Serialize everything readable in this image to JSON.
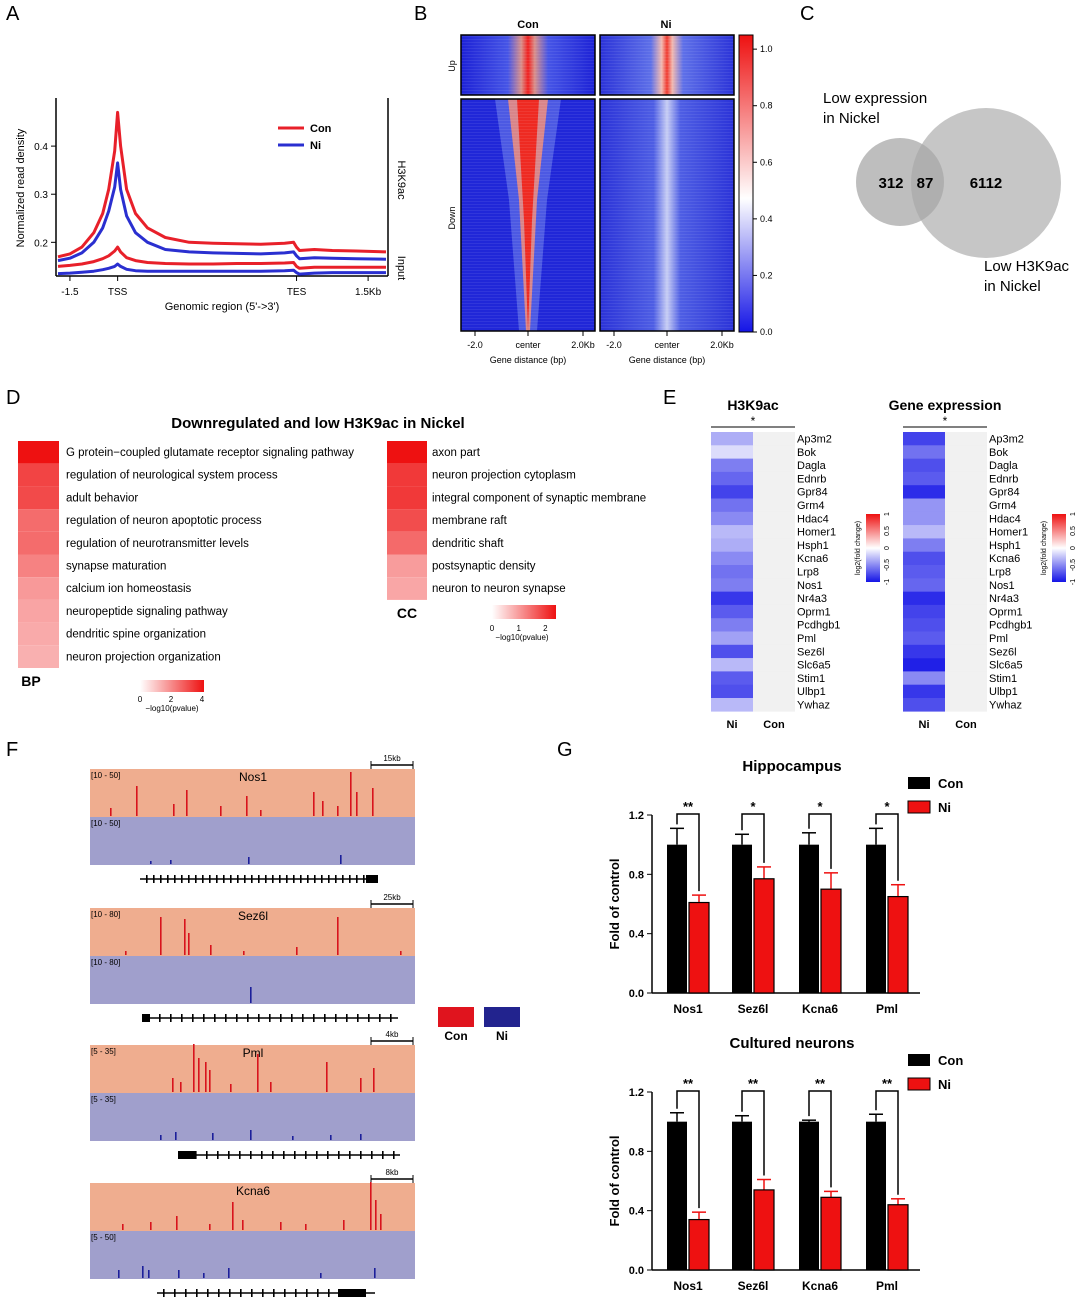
{
  "panel_letters": [
    "A",
    "B",
    "C",
    "D",
    "E",
    "F",
    "G"
  ],
  "colors": {
    "con": "#e8202a",
    "ni": "#2a2fd0",
    "con_block": "#e0141e",
    "ni_block": "#22238e",
    "bar_con": "#000000",
    "bar_ni": "#ee1111"
  },
  "chart_data": [
    {
      "id": "A",
      "type": "line",
      "ylabel": "Normalized read density",
      "xlabel": "Genomic region (5'->3')",
      "xticks": [
        "-1.5",
        "TSS",
        "TES",
        "1.5Kb"
      ],
      "yticks": [
        "0.2",
        "0.3",
        "0.4"
      ],
      "ylim": [
        0.13,
        0.5
      ],
      "right_labels": [
        "H3K9ac",
        "Input"
      ],
      "legend": [
        "Con",
        "Ni"
      ],
      "x": [
        0,
        0.2,
        0.4,
        0.6,
        0.75,
        0.85,
        0.95,
        1,
        1.05,
        1.15,
        1.3,
        1.5,
        1.8,
        2.2,
        2.6,
        3,
        3.4,
        3.8,
        3.95,
        4,
        4.05,
        4.3,
        4.6,
        5,
        5.5
      ],
      "series": [
        {
          "name": "Con",
          "signal": "H3K9ac",
          "values": [
            0.17,
            0.176,
            0.19,
            0.22,
            0.26,
            0.31,
            0.39,
            0.47,
            0.4,
            0.31,
            0.26,
            0.23,
            0.21,
            0.2,
            0.198,
            0.197,
            0.196,
            0.198,
            0.2,
            0.19,
            0.183,
            0.185,
            0.183,
            0.182,
            0.18
          ]
        },
        {
          "name": "Ni",
          "signal": "H3K9ac",
          "values": [
            0.162,
            0.167,
            0.178,
            0.2,
            0.23,
            0.265,
            0.315,
            0.365,
            0.31,
            0.255,
            0.22,
            0.2,
            0.185,
            0.18,
            0.178,
            0.177,
            0.176,
            0.178,
            0.18,
            0.172,
            0.166,
            0.168,
            0.167,
            0.166,
            0.165
          ]
        },
        {
          "name": "Con",
          "signal": "Input",
          "values": [
            0.15,
            0.152,
            0.155,
            0.16,
            0.166,
            0.172,
            0.182,
            0.19,
            0.18,
            0.168,
            0.162,
            0.158,
            0.156,
            0.155,
            0.155,
            0.156,
            0.156,
            0.157,
            0.158,
            0.15,
            0.146,
            0.148,
            0.148,
            0.148,
            0.148
          ]
        },
        {
          "name": "Ni",
          "signal": "Input",
          "values": [
            0.135,
            0.136,
            0.138,
            0.14,
            0.143,
            0.146,
            0.15,
            0.155,
            0.15,
            0.144,
            0.141,
            0.14,
            0.14,
            0.14,
            0.14,
            0.14,
            0.14,
            0.141,
            0.142,
            0.137,
            0.134,
            0.136,
            0.137,
            0.137,
            0.137
          ]
        }
      ]
    },
    {
      "id": "B",
      "type": "heatmap",
      "columns": [
        "Con",
        "Ni"
      ],
      "rows": [
        "Up",
        "Down"
      ],
      "xticks": [
        "-2.0",
        "center",
        "2.0Kb"
      ],
      "xlabel": "Gene distance (bp)",
      "colorbar_ticks": [
        "0.0",
        "0.2",
        "0.4",
        "0.6",
        "0.8",
        "1.0"
      ],
      "colorbar_range": [
        0,
        1.05
      ]
    },
    {
      "id": "C",
      "type": "venn",
      "sets": [
        {
          "label_line1": "Low expression",
          "label_line2": "in Nickel",
          "only": 312
        },
        {
          "label_line1": "Low H3K9ac",
          "label_line2": "in Nickel",
          "only": 6112
        }
      ],
      "overlap": 87
    },
    {
      "id": "D",
      "type": "heatmap",
      "title": "Downregulated and low H3K9ac in Nickel",
      "BP": {
        "label": "BP",
        "scale_ticks": [
          "0",
          "2",
          "4"
        ],
        "scale_label": "−log10(pvalue)",
        "terms": [
          "G protein−coupled glutamate receptor signaling pathway",
          "regulation of neurological system process",
          "adult behavior",
          "regulation of neuron apoptotic process",
          "regulation of neurotransmitter levels",
          "synapse maturation",
          "calcium ion homeostasis",
          "neuropeptide signaling pathway",
          "dendritic spine organization",
          "neuron projection organization"
        ],
        "values": [
          4.2,
          3.3,
          3.2,
          2.6,
          2.6,
          2.2,
          1.8,
          1.6,
          1.5,
          1.4
        ]
      },
      "CC": {
        "label": "CC",
        "scale_ticks": [
          "0",
          "1",
          "2"
        ],
        "scale_label": "−log10(pvalue)",
        "terms": [
          "axon part",
          "neuron projection cytoplasm",
          "integral component of synaptic membrane",
          "membrane raft",
          "dendritic shaft",
          "postsynaptic density",
          "neuron to neuron synapse"
        ],
        "values": [
          2.4,
          2.0,
          2.0,
          1.8,
          1.5,
          1.0,
          0.9
        ]
      }
    },
    {
      "id": "E",
      "type": "heatmap",
      "genes": [
        "Ap3m2",
        "Bok",
        "Dagla",
        "Ednrb",
        "Gpr84",
        "Grm4",
        "Hdac4",
        "Homer1",
        "Hsph1",
        "Kcna6",
        "Lrp8",
        "Nos1",
        "Nr4a3",
        "Oprm1",
        "Pcdhgb1",
        "Pml",
        "Sez6l",
        "Slc6a5",
        "Stim1",
        "Ulbp1",
        "Ywhaz"
      ],
      "columns": [
        "Ni",
        "Con"
      ],
      "significance": "*",
      "scale_ticks": [
        "-1",
        "-0.5",
        "0",
        "0.5",
        "1"
      ],
      "scale_label": "log2(fold change)",
      "panels": [
        {
          "title": "H3K9ac",
          "ni_values": [
            -0.35,
            -0.15,
            -0.55,
            -0.65,
            -0.8,
            -0.6,
            -0.5,
            -0.3,
            -0.35,
            -0.5,
            -0.6,
            -0.55,
            -0.85,
            -0.7,
            -0.55,
            -0.4,
            -0.75,
            -0.3,
            -0.7,
            -0.75,
            -0.3
          ]
        },
        {
          "title": "Gene expression",
          "ni_values": [
            -0.8,
            -0.6,
            -0.75,
            -0.7,
            -0.9,
            -0.45,
            -0.45,
            -0.3,
            -0.55,
            -0.75,
            -0.7,
            -0.65,
            -0.9,
            -0.8,
            -0.75,
            -0.7,
            -0.85,
            -0.95,
            -0.5,
            -0.85,
            -0.75
          ]
        }
      ]
    },
    {
      "id": "F",
      "type": "genome-tracks",
      "legend": [
        "Con",
        "Ni"
      ],
      "tracks": [
        {
          "gene": "Nos1",
          "scale_bar": "15kb",
          "range_con": "[10 - 50]",
          "range_ni": "[10 - 50]"
        },
        {
          "gene": "Sez6l",
          "scale_bar": "25kb",
          "range_con": "[10 - 80]",
          "range_ni": "[10 - 80]"
        },
        {
          "gene": "Pml",
          "scale_bar": "4kb",
          "range_con": "[5 - 35]",
          "range_ni": "[5 - 35]"
        },
        {
          "gene": "Kcna6",
          "scale_bar": "8kb",
          "range_con": "",
          "range_ni": "[5 - 50]"
        }
      ]
    },
    {
      "id": "G",
      "type": "bar",
      "ylabel": "Fold of control",
      "yticks": [
        "0.0",
        "0.4",
        "0.8",
        "1.2"
      ],
      "ylim": [
        0,
        1.2
      ],
      "legend": [
        "Con",
        "Ni"
      ],
      "categories": [
        "Nos1",
        "Sez6l",
        "Kcna6",
        "Pml"
      ],
      "charts": [
        {
          "title": "Hippocampus",
          "series": [
            {
              "name": "Con",
              "values": [
                1.0,
                1.0,
                1.0,
                1.0
              ],
              "errors": [
                0.11,
                0.07,
                0.08,
                0.11
              ]
            },
            {
              "name": "Ni",
              "values": [
                0.61,
                0.77,
                0.7,
                0.65
              ],
              "errors": [
                0.05,
                0.08,
                0.11,
                0.08
              ]
            }
          ],
          "significance": [
            "**",
            "*",
            "*",
            "*"
          ]
        },
        {
          "title": "Cultured neurons",
          "series": [
            {
              "name": "Con",
              "values": [
                1.0,
                1.0,
                1.0,
                1.0
              ],
              "errors": [
                0.06,
                0.04,
                0.01,
                0.05
              ]
            },
            {
              "name": "Ni",
              "values": [
                0.34,
                0.54,
                0.49,
                0.44
              ],
              "errors": [
                0.05,
                0.07,
                0.04,
                0.04
              ]
            }
          ],
          "significance": [
            "**",
            "**",
            "**",
            "**"
          ]
        }
      ]
    }
  ]
}
